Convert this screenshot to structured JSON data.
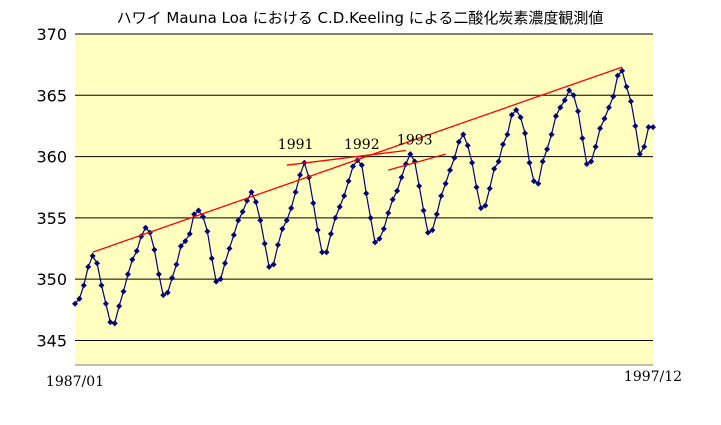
{
  "chart_data": {
    "type": "line",
    "title": "ハワイ Mauna Loa における C.D.Keeling による二酸化炭素濃度観測値",
    "x_start_label": "1987/01",
    "x_end_label": "1997/12",
    "ylim": [
      343,
      370
    ],
    "yticks": [
      345,
      350,
      355,
      360,
      365,
      370
    ],
    "grid": true,
    "colors": {
      "plot_bg": "#ffffc0",
      "series": "#00007a",
      "trend": "#ff0000"
    },
    "series": [
      {
        "x": [
          "1987/01",
          "1987/02",
          "1987/03",
          "1987/04",
          "1987/05",
          "1987/06",
          "1987/07",
          "1987/08",
          "1987/09",
          "1987/10",
          "1987/11",
          "1987/12",
          "1988/01",
          "1988/02",
          "1988/03",
          "1988/04",
          "1988/05",
          "1988/06",
          "1988/07",
          "1988/08",
          "1988/09",
          "1988/10",
          "1988/11",
          "1988/12",
          "1989/01",
          "1989/02",
          "1989/03",
          "1989/04",
          "1989/05",
          "1989/06",
          "1989/07",
          "1989/08",
          "1989/09",
          "1989/10",
          "1989/11",
          "1989/12",
          "1990/01",
          "1990/02",
          "1990/03",
          "1990/04",
          "1990/05",
          "1990/06",
          "1990/07",
          "1990/08",
          "1990/09",
          "1990/10",
          "1990/11",
          "1990/12",
          "1991/01",
          "1991/02",
          "1991/03",
          "1991/04",
          "1991/05",
          "1991/06",
          "1991/07",
          "1991/08",
          "1991/09",
          "1991/10",
          "1991/11",
          "1991/12",
          "1992/01",
          "1992/02",
          "1992/03",
          "1992/04",
          "1992/05",
          "1992/06",
          "1992/07",
          "1992/08",
          "1992/09",
          "1992/10",
          "1992/11",
          "1992/12",
          "1993/01",
          "1993/02",
          "1993/03",
          "1993/04",
          "1993/05",
          "1993/06",
          "1993/07",
          "1993/08",
          "1993/09",
          "1993/10",
          "1993/11",
          "1993/12",
          "1994/01",
          "1994/02",
          "1994/03",
          "1994/04",
          "1994/05",
          "1994/06",
          "1994/07",
          "1994/08",
          "1994/09",
          "1994/10",
          "1994/11",
          "1994/12",
          "1995/01",
          "1995/02",
          "1995/03",
          "1995/04",
          "1995/05",
          "1995/06",
          "1995/07",
          "1995/08",
          "1995/09",
          "1995/10",
          "1995/11",
          "1995/12",
          "1996/01",
          "1996/02",
          "1996/03",
          "1996/04",
          "1996/05",
          "1996/06",
          "1996/07",
          "1996/08",
          "1996/09",
          "1996/10",
          "1996/11",
          "1996/12",
          "1997/01",
          "1997/02",
          "1997/03",
          "1997/04",
          "1997/05",
          "1997/06",
          "1997/07",
          "1997/08",
          "1997/09",
          "1997/10",
          "1997/11",
          "1997/12"
        ],
        "values": [
          348.0,
          348.4,
          349.5,
          351.0,
          351.9,
          351.3,
          349.5,
          348.0,
          346.5,
          346.4,
          347.8,
          349.0,
          350.4,
          351.6,
          352.3,
          353.5,
          354.2,
          353.8,
          352.4,
          350.4,
          348.7,
          348.9,
          350.1,
          351.2,
          352.7,
          353.1,
          353.7,
          355.3,
          355.6,
          355.1,
          353.9,
          351.7,
          349.8,
          350.0,
          351.3,
          352.5,
          353.6,
          354.8,
          355.5,
          356.4,
          357.1,
          356.3,
          354.8,
          352.9,
          351.0,
          351.2,
          352.8,
          354.1,
          354.8,
          355.8,
          357.1,
          358.5,
          359.5,
          358.3,
          356.2,
          354.0,
          352.2,
          352.2,
          353.7,
          355.0,
          355.9,
          356.8,
          358.0,
          359.2,
          359.7,
          359.3,
          357.0,
          355.0,
          353.0,
          353.3,
          354.1,
          355.4,
          356.5,
          357.2,
          358.3,
          359.4,
          360.2,
          359.6,
          357.6,
          355.6,
          353.8,
          354.0,
          355.3,
          356.8,
          357.8,
          358.9,
          359.9,
          361.2,
          361.8,
          360.9,
          359.5,
          357.5,
          355.8,
          356.0,
          357.4,
          359.0,
          359.6,
          361.0,
          361.8,
          363.4,
          363.8,
          363.2,
          361.9,
          359.5,
          358.0,
          357.8,
          359.6,
          360.6,
          361.8,
          363.3,
          364.0,
          364.6,
          365.4,
          365.0,
          363.7,
          361.5,
          359.4,
          359.6,
          360.8,
          362.3,
          363.1,
          364.0,
          364.9,
          366.6,
          367.0,
          365.7,
          364.5,
          362.5,
          360.2,
          360.8,
          362.4,
          362.4
        ]
      }
    ],
    "trend_lines": [
      {
        "from": [
          "1987/05",
          352.2
        ],
        "to": [
          "1997/05",
          367.3
        ]
      },
      {
        "from": [
          "1991/01",
          359.3
        ],
        "to": [
          "1993/04",
          360.5
        ]
      },
      {
        "from": [
          "1992/12",
          358.9
        ],
        "to": [
          "1994/01",
          360.2
        ]
      }
    ],
    "annotations": [
      {
        "text": "1991",
        "x": "1991/03",
        "y": 360.6
      },
      {
        "text": "1992",
        "x": "1992/06",
        "y": 360.6
      },
      {
        "text": "1993",
        "x": "1993/06",
        "y": 361.0
      }
    ]
  }
}
